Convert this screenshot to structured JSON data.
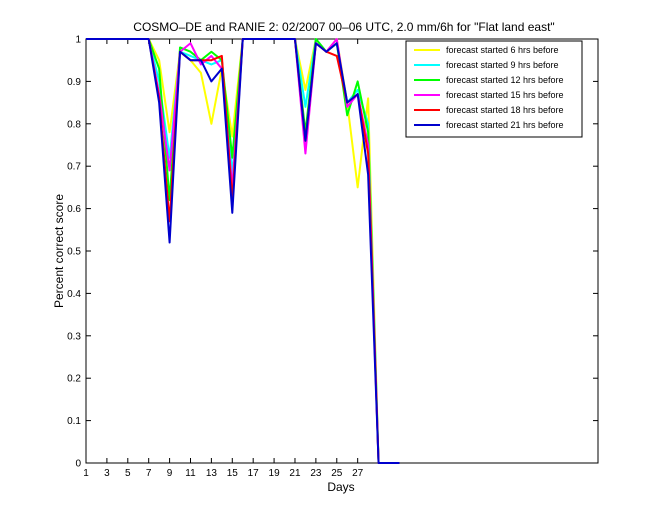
{
  "chart_data": {
    "type": "line",
    "title": "COSMO–DE and RANIE 2: 02/2007 00–06 UTC, 2.0 mm/6h for \"Flat land east\"",
    "xlabel": "Days",
    "ylabel": "Percent correct score",
    "xlim": [
      1,
      50
    ],
    "ylim": [
      0,
      1
    ],
    "xticks": [
      1,
      3,
      5,
      7,
      9,
      11,
      13,
      15,
      17,
      19,
      21,
      23,
      25,
      27
    ],
    "yticks": [
      0,
      0.1,
      0.2,
      0.3,
      0.4,
      0.5,
      0.6,
      0.7,
      0.8,
      0.9,
      1
    ],
    "ytick_labels": [
      "0",
      "0.1",
      "0.2",
      "0.3",
      "0.4",
      "0.5",
      "0.6",
      "0.7",
      "0.8",
      "0.9",
      "1"
    ],
    "grid": false,
    "legend_position": "top-right",
    "x": [
      1,
      2,
      3,
      4,
      5,
      6,
      7,
      8,
      9,
      10,
      11,
      12,
      13,
      14,
      15,
      16,
      17,
      18,
      19,
      20,
      21,
      22,
      23,
      24,
      25,
      26,
      27,
      28,
      29,
      30,
      31
    ],
    "series": [
      {
        "name": "forecast started 6 hrs before",
        "color": "#ffff00",
        "values": [
          1,
          1,
          1,
          1,
          1,
          1,
          1,
          0.95,
          0.78,
          0.97,
          0.95,
          0.92,
          0.8,
          0.93,
          0.77,
          1,
          1,
          1,
          1,
          1,
          1,
          0.88,
          1,
          0.97,
          1,
          0.85,
          0.65,
          0.86,
          0,
          0,
          0
        ]
      },
      {
        "name": "forecast started 9 hrs before",
        "color": "#00ffff",
        "values": [
          1,
          1,
          1,
          1,
          1,
          1,
          1,
          0.9,
          0.72,
          0.97,
          0.96,
          0.95,
          0.94,
          0.95,
          0.68,
          1,
          1,
          1,
          1,
          1,
          1,
          0.84,
          1,
          0.97,
          0.99,
          0.85,
          0.88,
          0.8,
          0,
          0,
          0
        ]
      },
      {
        "name": "forecast started 12 hrs before",
        "color": "#00ff00",
        "values": [
          1,
          1,
          1,
          1,
          1,
          1,
          1,
          0.93,
          0.62,
          0.98,
          0.97,
          0.95,
          0.97,
          0.95,
          0.72,
          1,
          1,
          1,
          1,
          1,
          1,
          0.78,
          1,
          0.97,
          0.99,
          0.82,
          0.9,
          0.78,
          0,
          0,
          0
        ]
      },
      {
        "name": "forecast started 15 hrs before",
        "color": "#ff00ff",
        "values": [
          1,
          1,
          1,
          1,
          1,
          1,
          1,
          0.87,
          0.69,
          0.97,
          0.99,
          0.94,
          0.96,
          0.93,
          0.65,
          1,
          1,
          1,
          1,
          1,
          1,
          0.73,
          0.99,
          0.97,
          1,
          0.84,
          0.87,
          0.75,
          0,
          0,
          0
        ]
      },
      {
        "name": "forecast started 18 hrs before",
        "color": "#ff0000",
        "values": [
          1,
          1,
          1,
          1,
          1,
          1,
          1,
          0.86,
          0.57,
          0.97,
          0.95,
          0.95,
          0.95,
          0.96,
          0.62,
          1,
          1,
          1,
          1,
          1,
          1,
          0.76,
          0.99,
          0.97,
          0.96,
          0.85,
          0.87,
          0.73,
          0,
          0,
          0
        ]
      },
      {
        "name": "forecast started 21 hrs before",
        "color": "#0000cd",
        "values": [
          1,
          1,
          1,
          1,
          1,
          1,
          1,
          0.85,
          0.52,
          0.97,
          0.95,
          0.95,
          0.9,
          0.93,
          0.59,
          1,
          1,
          1,
          1,
          1,
          1,
          0.76,
          0.99,
          0.97,
          0.99,
          0.85,
          0.87,
          0.68,
          0,
          0,
          0
        ]
      }
    ]
  }
}
